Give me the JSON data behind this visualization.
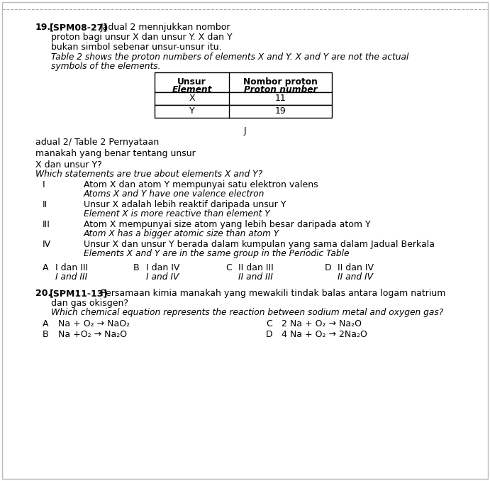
{
  "bg_color": "#ffffff",
  "border_color": "#bbbbbb",
  "text_color": "#000000",
  "fig_width": 6.91,
  "fig_height": 6.78,
  "q19": {
    "number": "19.",
    "tag": "[SPM08-27]",
    "malay_line1": "Jadual 2 mennjukkan nombor",
    "malay_line2": "proton bagi unsur X dan unsur Y. X dan Y",
    "malay_line3": "bukan simbol sebenar unsur-unsur itu.",
    "english_line1": "Table 2 shows the proton numbers of elements X and Y. X and Y are not the actual",
    "english_line2": "symbols of the elements.",
    "table": {
      "header_col1_malay": "Unsur",
      "header_col1_english": "Element",
      "header_col2_malay": "Nombor proton",
      "header_col2_english": "Proton number",
      "row1": [
        "X",
        "11"
      ],
      "row2": [
        "Y",
        "19"
      ]
    },
    "j_label": "J",
    "partial_malay": "adual 2/ Table 2 Pernyataan",
    "partial_malay2": "manakah yang benar tentang unsur",
    "partial_malay3": "X dan unsur Y?",
    "english_q": "Which statements are true about elements X and Y?",
    "statements": [
      {
        "roman": "I",
        "malay": "Atom X dan atom Y mempunyai satu elektron valens",
        "english": "Atoms X and Y have one valence electron"
      },
      {
        "roman": "II",
        "malay": "Unsur X adalah lebih reaktif daripada unsur Y",
        "english": "Element X is more reactive than element Y"
      },
      {
        "roman": "III",
        "malay": "Atom X mempunyai size atom yang lebih besar daripada atom Y",
        "english": "Atom X has a bigger atomic size than atom Y"
      },
      {
        "roman": "IV",
        "malay": "Unsur X dan unsur Y berada dalam kumpulan yang sama dalam Jadual Berkala",
        "english": "Elements X and Y are in the same group in the Periodic Table"
      }
    ],
    "answers": [
      {
        "letter": "A",
        "malay": "I dan III",
        "english": "I and III"
      },
      {
        "letter": "B",
        "malay": "I dan IV",
        "english": "I and IV"
      },
      {
        "letter": "C",
        "malay": "II dan III",
        "english": "II and III"
      },
      {
        "letter": "D",
        "malay": "II dan IV",
        "english": "II and IV"
      }
    ]
  },
  "q20": {
    "number": "20.",
    "tag": "[SPM11-13]",
    "malay_line1": "Persamaan kimia manakah yang mewakili tindak balas antara logam natrium",
    "malay_line2": "dan gas okisgen?",
    "english_line1": "Which chemical equation represents the reaction between sodium metal and oxygen gas?",
    "answers": [
      {
        "letter": "A",
        "eq": "Na + O₂ → NaO₂"
      },
      {
        "letter": "B",
        "eq": "Na +O₂ → Na₂O"
      },
      {
        "letter": "C",
        "eq": "2 Na + O₂ → Na₂O"
      },
      {
        "letter": "D",
        "eq": "4 Na + O₂ → 2Na₂O"
      }
    ]
  }
}
